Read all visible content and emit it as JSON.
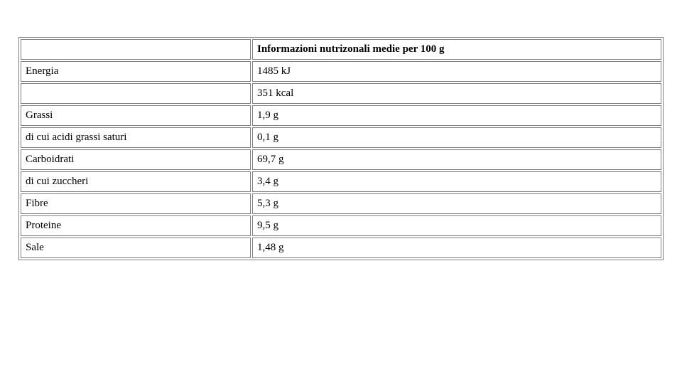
{
  "table": {
    "type": "table",
    "header_label": "",
    "header_value": "Informazioni nutrizonali medie per 100 g",
    "rows": [
      {
        "label": "Energia",
        "value": "1485 kJ"
      },
      {
        "label": "",
        "value": "351 kcal"
      },
      {
        "label": "Grassi",
        "value": "1,9 g"
      },
      {
        "label": "di cui acidi grassi saturi",
        "value": "0,1 g"
      },
      {
        "label": "Carboidrati",
        "value": "69,7 g"
      },
      {
        "label": "di cui zuccheri",
        "value": "3,4 g"
      },
      {
        "label": "Fibre",
        "value": "5,3 g"
      },
      {
        "label": "Proteine",
        "value": "9,5 g"
      },
      {
        "label": "Sale",
        "value": "1,48 g"
      }
    ],
    "border_color": "#808080",
    "text_color": "#000000",
    "background_color": "#ffffff",
    "font_family": "Times New Roman",
    "body_fontsize": 15,
    "header_fontsize": 15,
    "col_widths_pct": [
      36,
      64
    ]
  }
}
